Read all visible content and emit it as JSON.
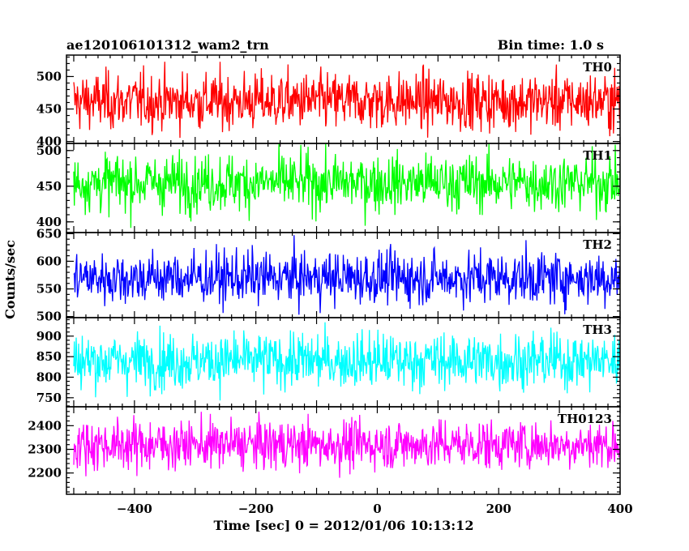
{
  "header": {
    "title": "ae120106101312_wam2_trn",
    "bin_time": "Bin time: 1.0 s"
  },
  "chart_data": {
    "type": "line",
    "x_label": "Time [sec] 0 = 2012/01/06 10:13:12",
    "y_label": "Counts/sec",
    "x_range": [
      -512,
      400
    ],
    "x_ticks": [
      -400,
      -200,
      0,
      200,
      400
    ],
    "bin_time_sec": 1.0,
    "panels": [
      {
        "label": "TH0",
        "color": "#ff0000",
        "ylim": [
          397,
          533
        ],
        "y_ticks": [
          400,
          450,
          500
        ],
        "mean": 462,
        "spread": 22,
        "min": 395,
        "max": 533
      },
      {
        "label": "TH1",
        "color": "#00ff00",
        "ylim": [
          385,
          510
        ],
        "y_ticks": [
          400,
          450,
          500
        ],
        "mean": 455,
        "spread": 20,
        "min": 385,
        "max": 510
      },
      {
        "label": "TH2",
        "color": "#0000ff",
        "ylim": [
          498,
          652
        ],
        "y_ticks": [
          500,
          550,
          600,
          650
        ],
        "mean": 570,
        "spread": 24,
        "min": 498,
        "max": 652
      },
      {
        "label": "TH3",
        "color": "#00ffff",
        "ylim": [
          728,
          945
        ],
        "y_ticks": [
          750,
          800,
          850,
          900
        ],
        "mean": 840,
        "spread": 34,
        "min": 728,
        "max": 945
      },
      {
        "label": "TH0123",
        "color": "#ff00ff",
        "ylim": [
          2110,
          2480
        ],
        "y_ticks": [
          2200,
          2300,
          2400
        ],
        "mean": 2320,
        "spread": 52,
        "min": 2110,
        "max": 2480
      }
    ]
  }
}
